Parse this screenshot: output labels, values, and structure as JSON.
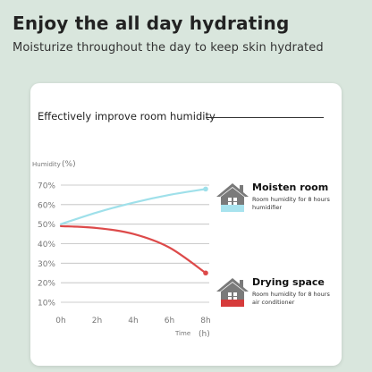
{
  "page": {
    "headline": "Enjoy the all day hydrating",
    "subheadline": "Moisturize throughout the day to keep skin hydrated"
  },
  "card": {
    "title": "Effectively improve room humidity"
  },
  "chart_data": {
    "type": "line",
    "title": "Effectively improve room humidity",
    "ylabel": "Humidity",
    "ylabel_unit": "(%)",
    "xlabel": "Time",
    "xlabel_unit": "(h)",
    "x": [
      0,
      2,
      4,
      6,
      8
    ],
    "x_tick_labels": [
      "0h",
      "2h",
      "4h",
      "6h",
      "8h"
    ],
    "y_tick_values": [
      10,
      20,
      30,
      40,
      50,
      60,
      70
    ],
    "y_tick_labels": [
      "10%",
      "20%",
      "30%",
      "40%",
      "50%",
      "60%",
      "70%"
    ],
    "xlim": [
      0,
      8
    ],
    "ylim": [
      5,
      72
    ],
    "grid": "horizontal",
    "series": [
      {
        "name": "Moisten room",
        "color": "#9fe0ea",
        "x": [
          0,
          2,
          4,
          6,
          8
        ],
        "values": [
          50,
          56,
          61,
          65,
          68
        ]
      },
      {
        "name": "Drying space",
        "color": "#dd4a4a",
        "x": [
          0,
          2,
          4,
          6,
          8
        ],
        "values": [
          49,
          48,
          45,
          38,
          25
        ]
      }
    ]
  },
  "legend": {
    "moisten": {
      "title": "Moisten room",
      "desc": "Room humidity for 8 hours humidifier",
      "house_color": "#7a7a7a",
      "accent_color": "#a8e3ee",
      "icon": "house-humidifier-icon"
    },
    "drying": {
      "title": "Drying space",
      "desc": "Room humidity for 8 hours air conditioner",
      "house_color": "#7a7a7a",
      "accent_color": "#d63b3b",
      "icon": "house-air-conditioner-icon"
    }
  }
}
